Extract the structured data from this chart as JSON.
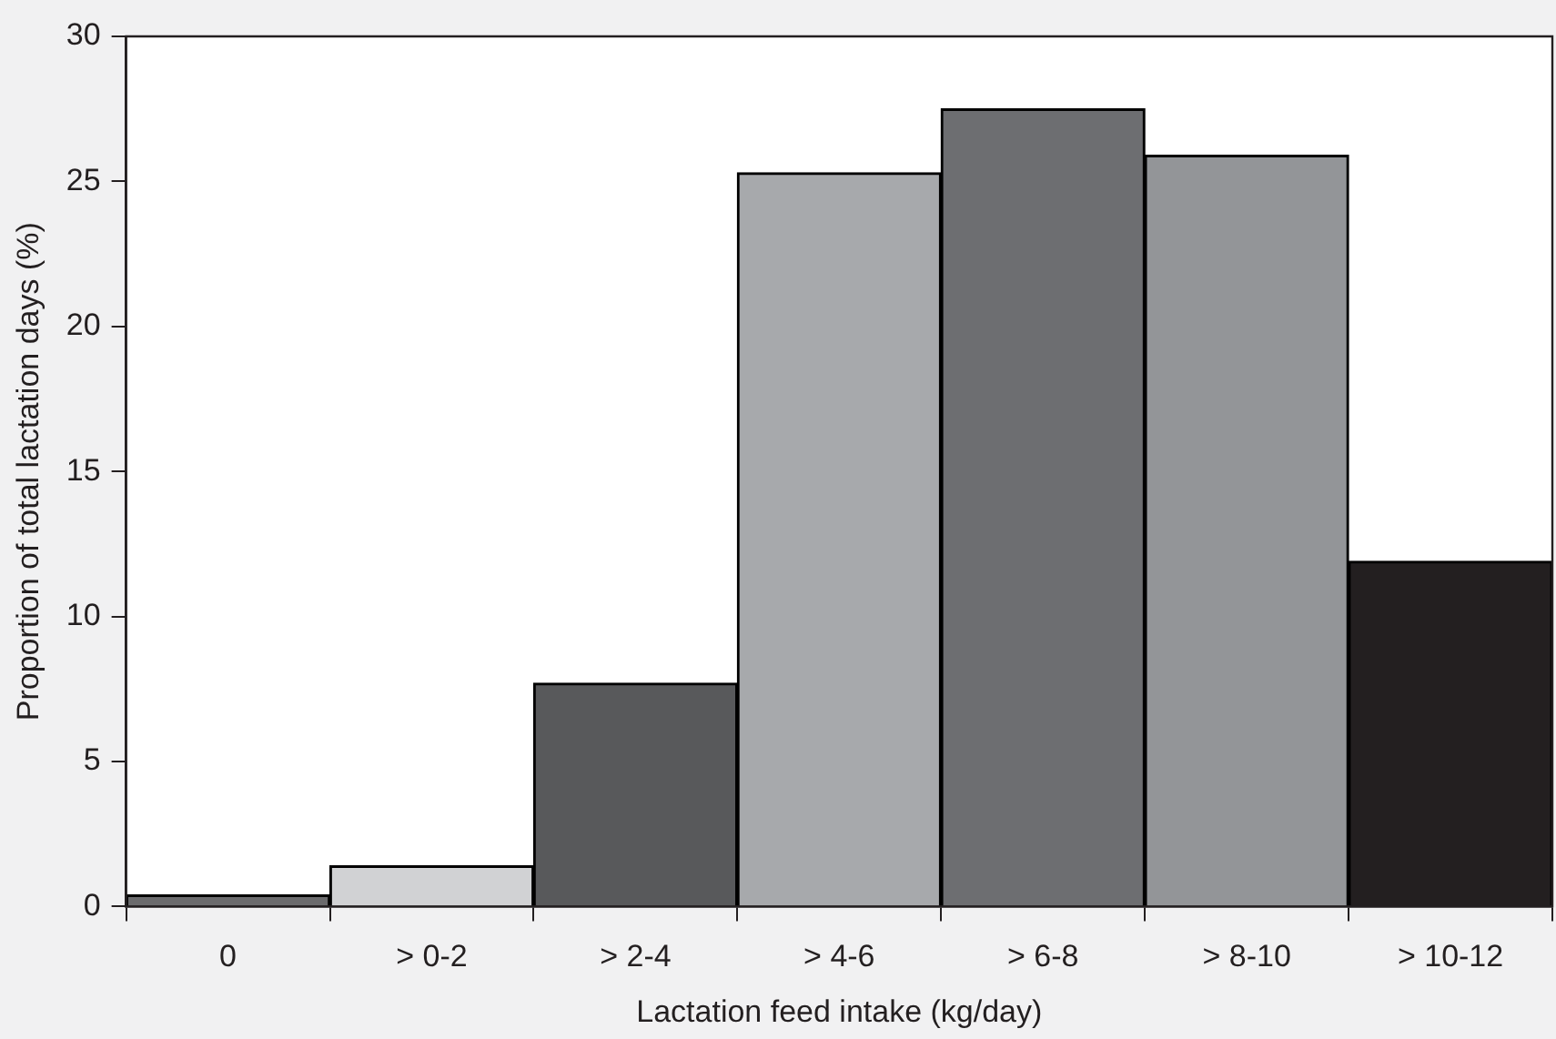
{
  "chart_data": {
    "type": "bar",
    "xlabel": "Lactation feed intake (kg/day)",
    "ylabel": "Proportion of total lactation days (%)",
    "categories": [
      "0",
      "> 0-2",
      "> 2-4",
      "> 4-6",
      "> 6-8",
      "> 8-10",
      "> 10-12"
    ],
    "values": [
      0.4,
      1.4,
      7.7,
      25.3,
      27.5,
      25.9,
      11.9
    ],
    "colors": [
      "#6b6b6d",
      "#d1d2d4",
      "#58595b",
      "#a7a9ac",
      "#6d6e71",
      "#939598",
      "#231f20"
    ],
    "ylim": [
      0,
      30
    ],
    "yticks": [
      0,
      5,
      10,
      15,
      20,
      25,
      30
    ],
    "grid": false,
    "legend": false
  }
}
